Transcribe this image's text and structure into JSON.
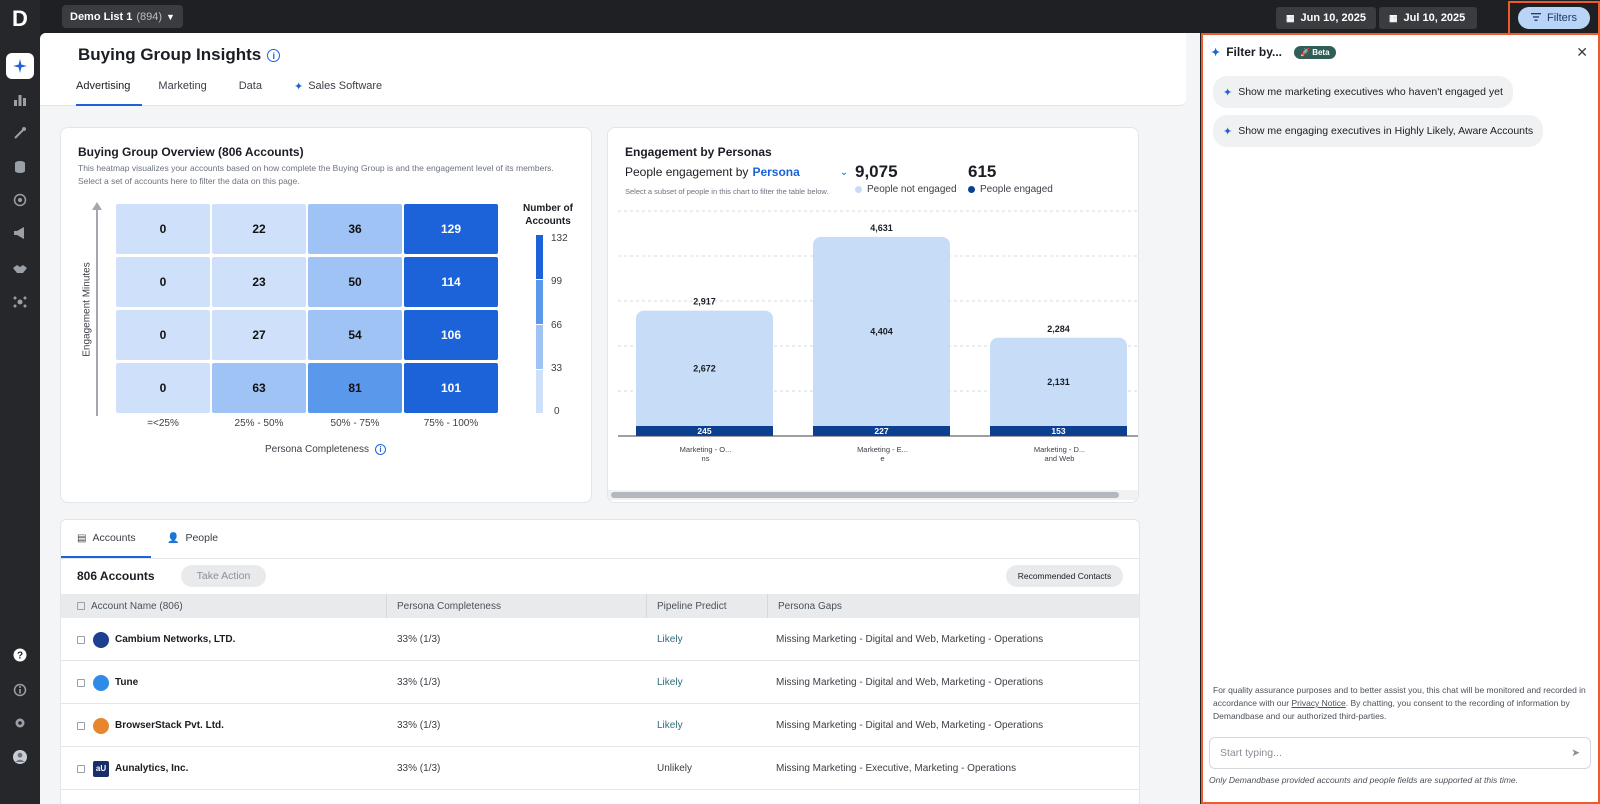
{
  "app": {
    "logo": "D"
  },
  "nav": [
    "sparkle-icon",
    "chart-icon",
    "wand-icon",
    "database-icon",
    "target-icon",
    "megaphone-icon",
    "handshake-icon",
    "network-icon",
    "help-icon",
    "info-icon",
    "gear-icon",
    "user-avatar-icon"
  ],
  "topbar": {
    "list_name": "Demo List 1",
    "list_count": "(894)",
    "date_start": "Jun 10, 2025",
    "date_end": "Jul 10, 2025",
    "filters_label": "Filters"
  },
  "page": {
    "title": "Buying Group Insights",
    "tabs": [
      "Advertising",
      "Marketing",
      "Data",
      "Sales Software"
    ]
  },
  "overview": {
    "title": "Buying Group Overview (806 Accounts)",
    "desc_line1": "This heatmap visualizes your accounts based on how complete the Buying Group is and the engagement level of its members.",
    "desc_line2": "Select a set of accounts here to filter the data on this page.",
    "y_label": "Engagement Minutes",
    "x_label": "Persona Completeness",
    "x_ticks": [
      "=<25%",
      "25% - 50%",
      "50% - 75%",
      "75% - 100%"
    ],
    "legend_title_1": "Number of",
    "legend_title_2": "Accounts",
    "legend_ticks": [
      "132",
      "99",
      "66",
      "33",
      "0"
    ]
  },
  "engagement": {
    "title": "Engagement by Personas",
    "sub_label": "People engagement by",
    "sub_value": "Persona",
    "hint": "Select a subset of people in this chart to filter the table below.",
    "kpi_not_engaged": "9,075",
    "kpi_not_engaged_label": "People not engaged",
    "kpi_engaged": "615",
    "kpi_engaged_label": "People engaged"
  },
  "chart_data": [
    {
      "type": "heatmap",
      "title": "Buying Group Overview (806 Accounts)",
      "xlabel": "Persona Completeness",
      "ylabel": "Engagement Minutes",
      "x_categories": [
        "=<25%",
        "25% - 50%",
        "50% - 75%",
        "75% - 100%"
      ],
      "rows": [
        [
          0,
          22,
          36,
          129
        ],
        [
          0,
          23,
          50,
          114
        ],
        [
          0,
          27,
          54,
          106
        ],
        [
          0,
          63,
          81,
          101
        ]
      ],
      "legend": "Number of Accounts",
      "color_range": [
        0,
        132
      ]
    },
    {
      "type": "bar",
      "title": "Engagement by Personas",
      "stacked": true,
      "categories": [
        [
          "Marketing - O...",
          "ns"
        ],
        [
          "Marketing - E...",
          "e"
        ],
        [
          "Marketing - D...",
          "and Web"
        ]
      ],
      "totals": [
        2917,
        4631,
        2284
      ],
      "series": [
        {
          "name": "People not engaged",
          "values": [
            2672,
            4404,
            2131
          ],
          "color": "#c6dcf7"
        },
        {
          "name": "People engaged",
          "values": [
            245,
            227,
            153
          ],
          "color": "#0d3f91"
        }
      ],
      "ylim": [
        0,
        5000
      ]
    }
  ],
  "table": {
    "tabs": [
      "Accounts",
      "People"
    ],
    "count_label": "806 Accounts",
    "take_action": "Take Action",
    "recommended": "Recommended Contacts",
    "columns": [
      "Account Name (806)",
      "Persona Completeness",
      "Pipeline Predict",
      "Persona Gaps"
    ],
    "rows": [
      {
        "name": "Cambium Networks, LTD.",
        "completeness": "33% (1/3)",
        "pipeline": "Likely",
        "gaps": "Missing Marketing - Digital and Web, Marketing - Operations",
        "logo_color": "#1c3f8f"
      },
      {
        "name": "Tune",
        "completeness": "33% (1/3)",
        "pipeline": "Likely",
        "gaps": "Missing Marketing - Digital and Web, Marketing - Operations",
        "logo_color": "#2f8be8"
      },
      {
        "name": "BrowserStack Pvt. Ltd.",
        "completeness": "33% (1/3)",
        "pipeline": "Likely",
        "gaps": "Missing Marketing - Digital and Web, Marketing - Operations",
        "logo_color": "#e8862f"
      },
      {
        "name": "Aunalytics, Inc.",
        "completeness": "33% (1/3)",
        "pipeline": "Unlikely",
        "gaps": "Missing Marketing - Executive, Marketing - Operations",
        "logo_color": "#1a2d6b",
        "logo_text": "aU"
      }
    ]
  },
  "panel": {
    "title": "Filter by...",
    "beta": "Beta",
    "suggestions": [
      "Show me marketing executives who haven't engaged yet",
      "Show me engaging executives in Highly Likely, Aware Accounts"
    ],
    "disclaimer_1": "For quality assurance purposes and to better assist you, this chat will be monitored and recorded in",
    "disclaimer_2a": "accordance with our ",
    "disclaimer_link": "Privacy Notice",
    "disclaimer_2b": ". By chatting, you consent to the recording of information by",
    "disclaimer_3": "Demandbase and our authorized third-parties.",
    "input_placeholder": "Start typing...",
    "footnote": "Only Demandbase provided accounts and people fields are supported at this time."
  },
  "colors": {
    "accent": "#1c63d9",
    "highlight": "#ee5a2a"
  }
}
